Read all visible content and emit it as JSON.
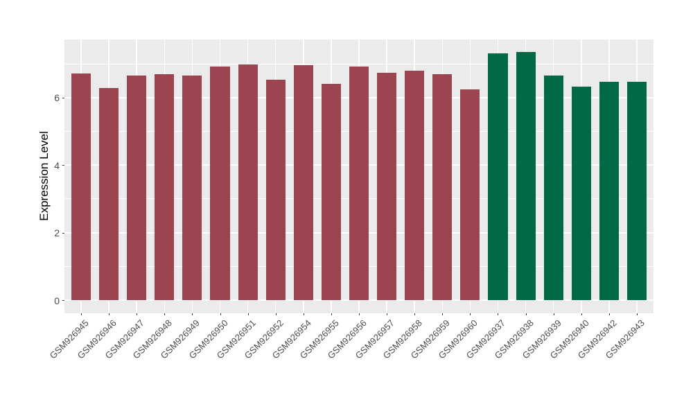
{
  "chart_data": {
    "type": "bar",
    "title": "",
    "ylabel": "Expression Level",
    "xlabel": "",
    "categories": [
      "GSM926945",
      "GSM926946",
      "GSM926947",
      "GSM926948",
      "GSM926949",
      "GSM926950",
      "GSM926951",
      "GSM926952",
      "GSM926954",
      "GSM926955",
      "GSM926956",
      "GSM926957",
      "GSM926958",
      "GSM926959",
      "GSM926960",
      "GSM926937",
      "GSM926938",
      "GSM926939",
      "GSM926940",
      "GSM926942",
      "GSM926943"
    ],
    "values": [
      6.72,
      6.29,
      6.66,
      6.7,
      6.66,
      6.91,
      6.98,
      6.52,
      6.97,
      6.4,
      6.92,
      6.73,
      6.79,
      6.7,
      6.24,
      7.3,
      7.35,
      6.65,
      6.33,
      6.46,
      6.46
    ],
    "groups": [
      "group1",
      "group1",
      "group1",
      "group1",
      "group1",
      "group1",
      "group1",
      "group1",
      "group1",
      "group1",
      "group1",
      "group1",
      "group1",
      "group1",
      "group1",
      "group2",
      "group2",
      "group2",
      "group2",
      "group2",
      "group2"
    ],
    "group_colors": {
      "group1": "#9C4450",
      "group2": "#016948"
    },
    "ylim": [
      -0.39,
      7.72
    ],
    "yticks_major": [
      0,
      2,
      4,
      6
    ],
    "yticks_minor": [
      1,
      3,
      5,
      7
    ],
    "grid": true,
    "legend_position": "none",
    "panel_background": "#EBEBEB",
    "grid_color": "#FFFFFF",
    "axis_text_color": "#4D4D4D",
    "axis_title_color": "#000000",
    "bar_width_fraction": 0.7,
    "x_tick_label_rotation_deg": 45
  }
}
